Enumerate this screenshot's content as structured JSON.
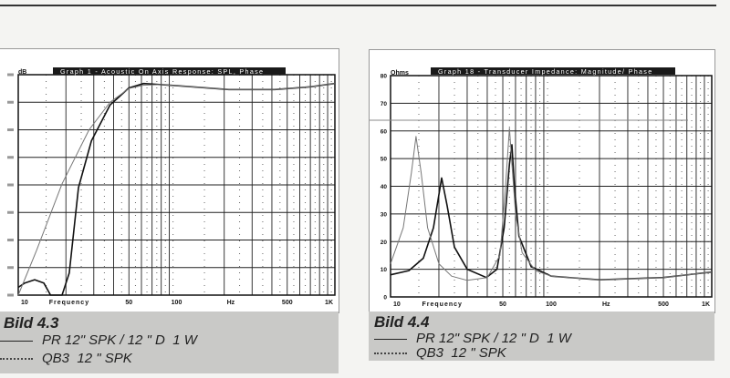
{
  "chart_data": [
    {
      "type": "line",
      "title": "Graph 1 - Acoustic On Axis Response: SPL, Phase",
      "ylabel": "dB",
      "xlabel": "Frequency",
      "x_unit": "Hz",
      "x_scale": "log",
      "xlim": [
        10,
        1000
      ],
      "ylim": [
        60,
        100
      ],
      "y_grid_step": 5,
      "x_tick_labels": [
        "10",
        "50",
        "100",
        "500",
        "1K"
      ],
      "grid": true,
      "series": [
        {
          "name": "PR 12\" SPK / 12 \" D 1 W",
          "style": "solid",
          "points": [
            [
              10,
              61.4
            ],
            [
              11,
              62.2
            ],
            [
              12.7,
              62.8
            ],
            [
              14.5,
              62.2
            ],
            [
              16,
              60
            ],
            [
              18.9,
              60
            ],
            [
              21,
              64
            ],
            [
              24,
              79.5
            ],
            [
              29,
              88
            ],
            [
              38,
              94.5
            ],
            [
              50,
              97.6
            ],
            [
              62,
              98.4
            ],
            [
              80,
              98.2
            ],
            [
              100,
              98
            ],
            [
              214,
              97.3
            ],
            [
              417,
              97.3
            ],
            [
              700,
              97.8
            ],
            [
              1000,
              98.4
            ]
          ]
        },
        {
          "name": "QB3 12 \" SPK",
          "style": "dotted",
          "points": [
            [
              10,
              60
            ],
            [
              13,
              68
            ],
            [
              18.9,
              80.2
            ],
            [
              28,
              90
            ],
            [
              38,
              95
            ],
            [
              50,
              97.5
            ],
            [
              62,
              98.1
            ],
            [
              80,
              98.2
            ],
            [
              100,
              98
            ],
            [
              214,
              97.3
            ],
            [
              417,
              97.3
            ],
            [
              700,
              97.8
            ],
            [
              1000,
              98.4
            ]
          ]
        }
      ]
    },
    {
      "type": "line",
      "title": "Graph 18 - Transducer Impedance: Magnitude/ Phase",
      "ylabel": "Ohms",
      "xlabel": "Frequency",
      "x_unit": "Hz",
      "x_scale": "log",
      "xlim": [
        10,
        1000
      ],
      "ylim": [
        0,
        80
      ],
      "y_tick_labels": [
        "0",
        "10",
        "20",
        "30",
        "40",
        "50",
        "60",
        "70",
        "80"
      ],
      "x_tick_labels": [
        "10",
        "50",
        "100",
        "500",
        "1K"
      ],
      "grid": true,
      "series": [
        {
          "name": "PR 12\" SPK / 12 \" D 1 W",
          "style": "solid",
          "points": [
            [
              10,
              8
            ],
            [
              13,
              9.5
            ],
            [
              16,
              14
            ],
            [
              18.5,
              25
            ],
            [
              20.8,
              43
            ],
            [
              22.5,
              33
            ],
            [
              25,
              18
            ],
            [
              30,
              10
            ],
            [
              39.5,
              7
            ],
            [
              46,
              10
            ],
            [
              51,
              25
            ],
            [
              55,
              48
            ],
            [
              57,
              55
            ],
            [
              59,
              40
            ],
            [
              63,
              22
            ],
            [
              75,
              11
            ],
            [
              100,
              7.5
            ],
            [
              200,
              6.2
            ],
            [
              500,
              7
            ],
            [
              1000,
              9
            ]
          ]
        },
        {
          "name": "QB3 12 \" SPK",
          "style": "dotted",
          "points": [
            [
              10,
              12
            ],
            [
              12,
              25
            ],
            [
              13.5,
              45
            ],
            [
              14.4,
              58
            ],
            [
              15.5,
              45
            ],
            [
              17,
              25
            ],
            [
              20,
              12
            ],
            [
              24,
              7.5
            ],
            [
              30,
              6
            ],
            [
              40,
              7
            ],
            [
              48,
              15
            ],
            [
              52,
              40
            ],
            [
              55,
              61
            ],
            [
              57,
              48
            ],
            [
              60,
              30
            ],
            [
              66,
              16
            ],
            [
              80,
              9.5
            ],
            [
              100,
              7.5
            ],
            [
              200,
              6.2
            ],
            [
              500,
              7
            ],
            [
              1000,
              9
            ]
          ]
        }
      ]
    }
  ],
  "captions": {
    "left": {
      "title": "Bild 4.3",
      "legend": [
        "PR 12\" SPK / 12 \" D  1 W",
        "QB3  12 \" SPK"
      ]
    },
    "right": {
      "title": "Bild 4.4",
      "legend": [
        "PR 12\" SPK / 12 \" D  1 W",
        "QB3  12 \" SPK"
      ]
    }
  },
  "colors": {
    "solid_curve": "#111111",
    "dotted_curve": "#777777",
    "caption_bg": "#c9c9c7",
    "title_bar": "#1a1a1a"
  }
}
